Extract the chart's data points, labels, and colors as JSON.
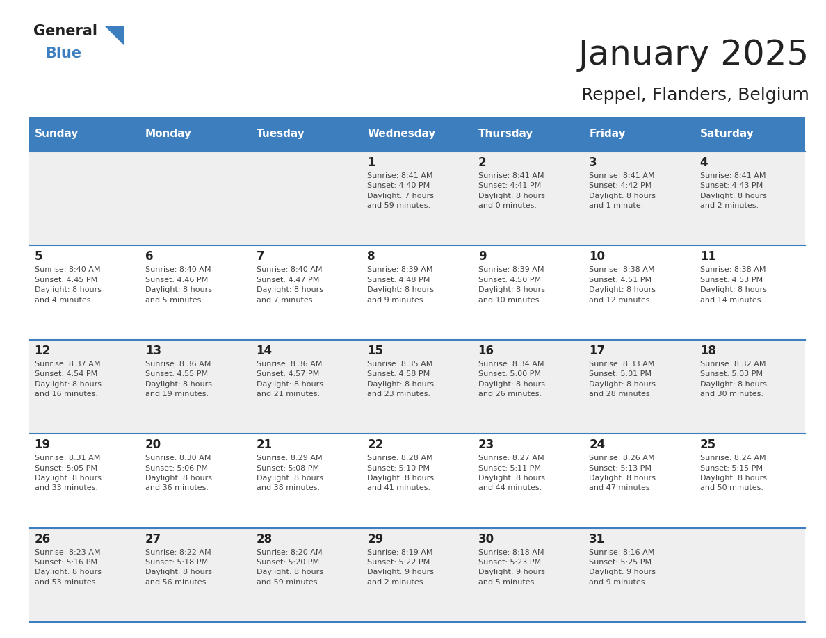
{
  "title": "January 2025",
  "subtitle": "Reppel, Flanders, Belgium",
  "days_of_week": [
    "Sunday",
    "Monday",
    "Tuesday",
    "Wednesday",
    "Thursday",
    "Friday",
    "Saturday"
  ],
  "header_bg": "#3d7ebf",
  "header_text": "#ffffff",
  "row_bg_odd": "#efefef",
  "row_bg_even": "#ffffff",
  "separator_color": "#3d7ebf",
  "day_text_color": "#222222",
  "cell_text_color": "#444444",
  "title_color": "#222222",
  "subtitle_color": "#222222",
  "logo_general_color": "#222222",
  "logo_blue_color": "#3d7ebf",
  "logo_triangle_color": "#3d7ebf",
  "calendar": [
    [
      {
        "day": "",
        "info": ""
      },
      {
        "day": "",
        "info": ""
      },
      {
        "day": "",
        "info": ""
      },
      {
        "day": "1",
        "info": "Sunrise: 8:41 AM\nSunset: 4:40 PM\nDaylight: 7 hours\nand 59 minutes."
      },
      {
        "day": "2",
        "info": "Sunrise: 8:41 AM\nSunset: 4:41 PM\nDaylight: 8 hours\nand 0 minutes."
      },
      {
        "day": "3",
        "info": "Sunrise: 8:41 AM\nSunset: 4:42 PM\nDaylight: 8 hours\nand 1 minute."
      },
      {
        "day": "4",
        "info": "Sunrise: 8:41 AM\nSunset: 4:43 PM\nDaylight: 8 hours\nand 2 minutes."
      }
    ],
    [
      {
        "day": "5",
        "info": "Sunrise: 8:40 AM\nSunset: 4:45 PM\nDaylight: 8 hours\nand 4 minutes."
      },
      {
        "day": "6",
        "info": "Sunrise: 8:40 AM\nSunset: 4:46 PM\nDaylight: 8 hours\nand 5 minutes."
      },
      {
        "day": "7",
        "info": "Sunrise: 8:40 AM\nSunset: 4:47 PM\nDaylight: 8 hours\nand 7 minutes."
      },
      {
        "day": "8",
        "info": "Sunrise: 8:39 AM\nSunset: 4:48 PM\nDaylight: 8 hours\nand 9 minutes."
      },
      {
        "day": "9",
        "info": "Sunrise: 8:39 AM\nSunset: 4:50 PM\nDaylight: 8 hours\nand 10 minutes."
      },
      {
        "day": "10",
        "info": "Sunrise: 8:38 AM\nSunset: 4:51 PM\nDaylight: 8 hours\nand 12 minutes."
      },
      {
        "day": "11",
        "info": "Sunrise: 8:38 AM\nSunset: 4:53 PM\nDaylight: 8 hours\nand 14 minutes."
      }
    ],
    [
      {
        "day": "12",
        "info": "Sunrise: 8:37 AM\nSunset: 4:54 PM\nDaylight: 8 hours\nand 16 minutes."
      },
      {
        "day": "13",
        "info": "Sunrise: 8:36 AM\nSunset: 4:55 PM\nDaylight: 8 hours\nand 19 minutes."
      },
      {
        "day": "14",
        "info": "Sunrise: 8:36 AM\nSunset: 4:57 PM\nDaylight: 8 hours\nand 21 minutes."
      },
      {
        "day": "15",
        "info": "Sunrise: 8:35 AM\nSunset: 4:58 PM\nDaylight: 8 hours\nand 23 minutes."
      },
      {
        "day": "16",
        "info": "Sunrise: 8:34 AM\nSunset: 5:00 PM\nDaylight: 8 hours\nand 26 minutes."
      },
      {
        "day": "17",
        "info": "Sunrise: 8:33 AM\nSunset: 5:01 PM\nDaylight: 8 hours\nand 28 minutes."
      },
      {
        "day": "18",
        "info": "Sunrise: 8:32 AM\nSunset: 5:03 PM\nDaylight: 8 hours\nand 30 minutes."
      }
    ],
    [
      {
        "day": "19",
        "info": "Sunrise: 8:31 AM\nSunset: 5:05 PM\nDaylight: 8 hours\nand 33 minutes."
      },
      {
        "day": "20",
        "info": "Sunrise: 8:30 AM\nSunset: 5:06 PM\nDaylight: 8 hours\nand 36 minutes."
      },
      {
        "day": "21",
        "info": "Sunrise: 8:29 AM\nSunset: 5:08 PM\nDaylight: 8 hours\nand 38 minutes."
      },
      {
        "day": "22",
        "info": "Sunrise: 8:28 AM\nSunset: 5:10 PM\nDaylight: 8 hours\nand 41 minutes."
      },
      {
        "day": "23",
        "info": "Sunrise: 8:27 AM\nSunset: 5:11 PM\nDaylight: 8 hours\nand 44 minutes."
      },
      {
        "day": "24",
        "info": "Sunrise: 8:26 AM\nSunset: 5:13 PM\nDaylight: 8 hours\nand 47 minutes."
      },
      {
        "day": "25",
        "info": "Sunrise: 8:24 AM\nSunset: 5:15 PM\nDaylight: 8 hours\nand 50 minutes."
      }
    ],
    [
      {
        "day": "26",
        "info": "Sunrise: 8:23 AM\nSunset: 5:16 PM\nDaylight: 8 hours\nand 53 minutes."
      },
      {
        "day": "27",
        "info": "Sunrise: 8:22 AM\nSunset: 5:18 PM\nDaylight: 8 hours\nand 56 minutes."
      },
      {
        "day": "28",
        "info": "Sunrise: 8:20 AM\nSunset: 5:20 PM\nDaylight: 8 hours\nand 59 minutes."
      },
      {
        "day": "29",
        "info": "Sunrise: 8:19 AM\nSunset: 5:22 PM\nDaylight: 9 hours\nand 2 minutes."
      },
      {
        "day": "30",
        "info": "Sunrise: 8:18 AM\nSunset: 5:23 PM\nDaylight: 9 hours\nand 5 minutes."
      },
      {
        "day": "31",
        "info": "Sunrise: 8:16 AM\nSunset: 5:25 PM\nDaylight: 9 hours\nand 9 minutes."
      },
      {
        "day": "",
        "info": ""
      }
    ]
  ],
  "fig_width": 11.88,
  "fig_height": 9.18,
  "dpi": 100
}
